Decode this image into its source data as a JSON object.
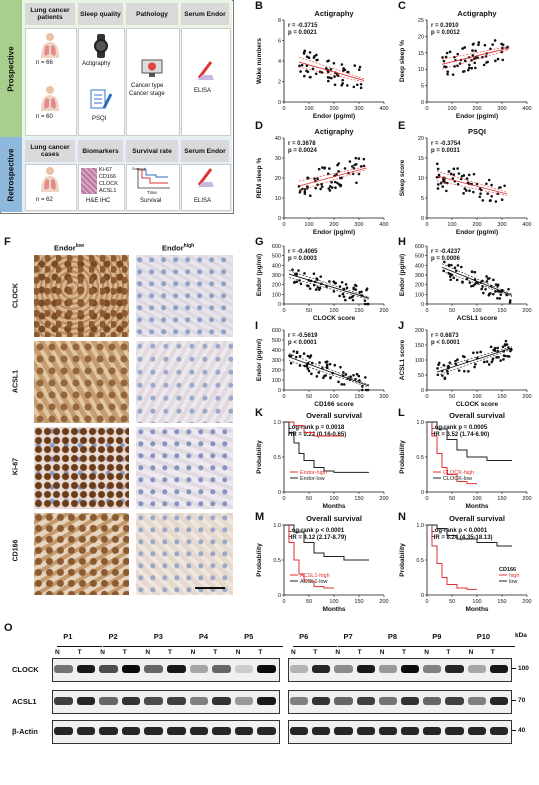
{
  "panel_labels": {
    "A": "A",
    "B": "B",
    "C": "C",
    "D": "D",
    "E": "E",
    "F": "F",
    "G": "G",
    "H": "H",
    "I": "I",
    "J": "J",
    "K": "K",
    "L": "L",
    "M": "M",
    "N": "N",
    "O": "O"
  },
  "panelA": {
    "row1": "Prospective",
    "row2": "Retrospective",
    "pros_headers": [
      "Lung cancer patients",
      "Sleep quality",
      "Pathology",
      "Serum Endor"
    ],
    "retro_headers": [
      "Lung cancer cases",
      "Biomarkers",
      "Survival rate",
      "Serum Endor"
    ],
    "n1": "n = 66",
    "n2": "n = 60",
    "n3": "n = 62",
    "actigraphy": "Actigraphy",
    "psqi": "PSQI",
    "cancer_type": "Cancer type",
    "cancer_stage": "Cancer stage",
    "elisa": "ELISA",
    "biomarkers": [
      "Ki-67",
      "CD166",
      "CLOCK",
      "ACSL1"
    ],
    "he_ihc": "H&E IHC",
    "survival_axis": "Survival",
    "time_axis": "Time",
    "survival": "Survival",
    "colors": {
      "pros": "#a9cf8f",
      "retro": "#8eb8dc",
      "header": "#d9d9d9"
    }
  },
  "panelF": {
    "col_low": "Endor",
    "col_low_sup": "low",
    "col_high": "Endor",
    "col_high_sup": "high",
    "rows": [
      "CLOCK",
      "ACSL1",
      "Ki-67",
      "CD166"
    ]
  },
  "panelO": {
    "patients_left": [
      "P1",
      "P2",
      "P3",
      "P4",
      "P5"
    ],
    "patients_right": [
      "P6",
      "P7",
      "P8",
      "P9",
      "P10"
    ],
    "lane_n": "N",
    "lane_t": "T",
    "rows": [
      "CLOCK",
      "ACSL1",
      "β-Actin"
    ],
    "kda": "kDa",
    "markers": [
      "100",
      "70",
      "40"
    ]
  },
  "chart_data": [
    {
      "id": "B",
      "type": "scatter",
      "title": "Actigraphy",
      "xlabel": "Endor (pg/ml)",
      "ylabel": "Wake numbers",
      "xlim": [
        0,
        400
      ],
      "ylim": [
        0,
        8
      ],
      "xticks": [
        "0",
        "100",
        "200",
        "300",
        "400"
      ],
      "yticks": [
        "0",
        "2",
        "4",
        "6",
        "8"
      ],
      "stats": [
        "r = -0.3715",
        "p = 0.0021"
      ],
      "fit": [
        [
          60,
          3.9
        ],
        [
          320,
          2.1
        ]
      ]
    },
    {
      "id": "C",
      "type": "scatter",
      "title": "Actigraphy",
      "xlabel": "Endor (pg/ml)",
      "ylabel": "Deep sleep %",
      "xlim": [
        0,
        400
      ],
      "ylim": [
        0,
        25
      ],
      "xticks": [
        "0",
        "100",
        "200",
        "300",
        "400"
      ],
      "yticks": [
        "0",
        "5",
        "10",
        "15",
        "20",
        "25"
      ],
      "stats": [
        "r = 0.3910",
        "p = 0.0012"
      ],
      "fit": [
        [
          60,
          11.5
        ],
        [
          330,
          16.5
        ]
      ]
    },
    {
      "id": "D",
      "type": "scatter",
      "title": "Actigraphy",
      "xlabel": "Endor (pg/ml)",
      "ylabel": "REM sleep %",
      "xlim": [
        0,
        400
      ],
      "ylim": [
        0,
        40
      ],
      "xticks": [
        "0",
        "100",
        "200",
        "300",
        "400"
      ],
      "yticks": [
        "0",
        "10",
        "20",
        "30",
        "40"
      ],
      "stats": [
        "r = 0.3678",
        "p = 0.0024"
      ],
      "fit": [
        [
          60,
          16
        ],
        [
          330,
          25
        ]
      ]
    },
    {
      "id": "E",
      "type": "scatter",
      "title": "PSQI",
      "xlabel": "Endor (pg/ml)",
      "ylabel": "Sleep score",
      "xlim": [
        0,
        400
      ],
      "ylim": [
        0,
        20
      ],
      "xticks": [
        "0",
        "100",
        "200",
        "300",
        "400"
      ],
      "yticks": [
        "0",
        "5",
        "10",
        "15",
        "20"
      ],
      "stats": [
        "r = -0.3754",
        "p = 0.0031"
      ],
      "fit": [
        [
          40,
          10.5
        ],
        [
          320,
          6
        ]
      ]
    },
    {
      "id": "G",
      "type": "scatter",
      "xlabel": "CLOCK score",
      "ylabel": "Endor (pg/ml)",
      "xlim": [
        0,
        200
      ],
      "ylim": [
        0,
        600
      ],
      "xticks": [
        "0",
        "50",
        "100",
        "150",
        "200"
      ],
      "yticks": [
        "0",
        "100",
        "200",
        "300",
        "400",
        "500",
        "600"
      ],
      "stats": [
        "r = -0.4065",
        "p = 0.0003"
      ],
      "fit": [
        [
          10,
          310
        ],
        [
          170,
          60
        ]
      ]
    },
    {
      "id": "H",
      "type": "scatter",
      "xlabel": "ACSL1 score",
      "ylabel": "Endor (pg/ml)",
      "xlim": [
        0,
        200
      ],
      "ylim": [
        0,
        600
      ],
      "xticks": [
        "0",
        "50",
        "100",
        "150",
        "200"
      ],
      "yticks": [
        "0",
        "100",
        "200",
        "300",
        "400",
        "500",
        "600"
      ],
      "stats": [
        "r = -0.4237",
        "p = 0.0006"
      ],
      "fit": [
        [
          30,
          380
        ],
        [
          170,
          90
        ]
      ]
    },
    {
      "id": "I",
      "type": "scatter",
      "xlabel": "CD166 score",
      "ylabel": "Endor (pg/ml)",
      "xlim": [
        0,
        200
      ],
      "ylim": [
        0,
        600
      ],
      "xticks": [
        "0",
        "50",
        "100",
        "150",
        "200"
      ],
      "yticks": [
        "0",
        "100",
        "200",
        "300",
        "400",
        "500",
        "600"
      ],
      "stats": [
        "r = -0.5619",
        "p < 0.0001"
      ],
      "fit": [
        [
          10,
          330
        ],
        [
          170,
          40
        ]
      ]
    },
    {
      "id": "J",
      "type": "scatter",
      "xlabel": "CLOCK score",
      "ylabel": "ACSL1 score",
      "xlim": [
        0,
        200
      ],
      "ylim": [
        0,
        200
      ],
      "xticks": [
        "0",
        "50",
        "100",
        "150",
        "200"
      ],
      "yticks": [
        "0",
        "50",
        "100",
        "150",
        "200"
      ],
      "stats": [
        "r = 0.6873",
        "p < 0.0001"
      ],
      "fit": [
        [
          20,
          60
        ],
        [
          170,
          140
        ]
      ]
    },
    {
      "id": "K",
      "type": "line",
      "title": "Overall survival",
      "xlabel": "Months",
      "ylabel": "Probability",
      "xlim": [
        0,
        200
      ],
      "ylim": [
        0,
        1
      ],
      "xticks": [
        "0",
        "50",
        "100",
        "150",
        "200"
      ],
      "yticks": [
        "0",
        "0.5",
        "1.0"
      ],
      "stats": [
        "Log-rank p = 0.0018",
        "HR = 0.22 (0.16-0.65)"
      ],
      "series": [
        {
          "name": "Endor-high",
          "color": "#e03030",
          "x": [
            0,
            20,
            40,
            60,
            80,
            100,
            120
          ],
          "y": [
            1,
            0.95,
            0.85,
            0.8,
            0.8,
            0.8,
            0.8
          ]
        },
        {
          "name": "Endor-low",
          "color": "#222222",
          "x": [
            0,
            10,
            20,
            30,
            40,
            60,
            80,
            100,
            140,
            170
          ],
          "y": [
            1,
            0.85,
            0.7,
            0.55,
            0.45,
            0.35,
            0.3,
            0.28,
            0.28,
            0.28
          ]
        }
      ]
    },
    {
      "id": "L",
      "type": "line",
      "title": "Overall survival",
      "xlabel": "Months",
      "ylabel": "Probability",
      "xlim": [
        0,
        200
      ],
      "ylim": [
        0,
        1
      ],
      "xticks": [
        "0",
        "50",
        "100",
        "150",
        "200"
      ],
      "yticks": [
        "0",
        "0.5",
        "1.0"
      ],
      "stats": [
        "Log-rank p = 0.0005",
        "HR = 3.52 (1.74-6.90)"
      ],
      "series": [
        {
          "name": "CLOCK-high",
          "color": "#e03030",
          "x": [
            0,
            10,
            20,
            30,
            40,
            60,
            80,
            100
          ],
          "y": [
            1,
            0.8,
            0.55,
            0.35,
            0.25,
            0.15,
            0.12,
            0.12
          ]
        },
        {
          "name": "CLOCK-low",
          "color": "#222222",
          "x": [
            0,
            20,
            40,
            60,
            80,
            120,
            170
          ],
          "y": [
            1,
            0.9,
            0.75,
            0.6,
            0.5,
            0.45,
            0.45
          ]
        }
      ]
    },
    {
      "id": "M",
      "type": "line",
      "title": "Overall survival",
      "xlabel": "Months",
      "ylabel": "Probability",
      "xlim": [
        0,
        200
      ],
      "ylim": [
        0,
        1
      ],
      "xticks": [
        "0",
        "50",
        "100",
        "150",
        "200"
      ],
      "yticks": [
        "0",
        "0.5",
        "1.0"
      ],
      "stats": [
        "Log-rank p < 0.0001",
        "HR = 4.12 (2.17-8.79)"
      ],
      "series": [
        {
          "name": "ACSL1-high",
          "color": "#e03030",
          "x": [
            0,
            10,
            20,
            30,
            40,
            60,
            80,
            100
          ],
          "y": [
            1,
            0.75,
            0.5,
            0.3,
            0.2,
            0.12,
            0.1,
            0.1
          ]
        },
        {
          "name": "ACSL1-low",
          "color": "#222222",
          "x": [
            0,
            20,
            40,
            60,
            80,
            120,
            170
          ],
          "y": [
            1,
            0.9,
            0.75,
            0.6,
            0.55,
            0.5,
            0.5
          ]
        }
      ]
    },
    {
      "id": "N",
      "type": "line",
      "title": "Overall survival",
      "xlabel": "Months",
      "ylabel": "Probability",
      "xlim": [
        0,
        200
      ],
      "ylim": [
        0,
        1
      ],
      "xticks": [
        "0",
        "50",
        "100",
        "150",
        "200"
      ],
      "yticks": [
        "0",
        "0.5",
        "1.0"
      ],
      "stats": [
        "Log-rank   p < 0.0001",
        "HR = 8.24 (4.35-18.13)"
      ],
      "legend_title": "CD166",
      "series": [
        {
          "name": "high",
          "color": "#e03030",
          "x": [
            0,
            10,
            20,
            30,
            40,
            60,
            80,
            100
          ],
          "y": [
            1,
            0.7,
            0.45,
            0.25,
            0.15,
            0.1,
            0.08,
            0.08
          ]
        },
        {
          "name": "low",
          "color": "#222222",
          "x": [
            0,
            20,
            40,
            60,
            100,
            140,
            170
          ],
          "y": [
            1,
            0.95,
            0.85,
            0.8,
            0.75,
            0.7,
            0.7
          ]
        }
      ]
    }
  ]
}
